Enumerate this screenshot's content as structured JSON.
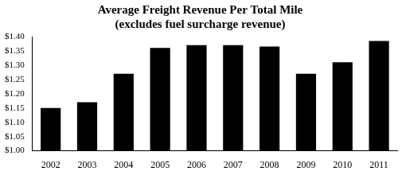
{
  "chart_data": {
    "type": "bar",
    "title": "Average Freight Revenue Per Total Mile",
    "subtitle": "(excludes fuel surcharge revenue)",
    "categories": [
      "2002",
      "2003",
      "2004",
      "2005",
      "2006",
      "2007",
      "2008",
      "2009",
      "2010",
      "2011"
    ],
    "values": [
      1.15,
      1.17,
      1.27,
      1.36,
      1.37,
      1.37,
      1.365,
      1.27,
      1.31,
      1.385
    ],
    "color": "#000000",
    "ylim": [
      1,
      1.4
    ],
    "yticks": [
      {
        "value": 1,
        "label": "$1.00"
      },
      {
        "value": 1.05,
        "label": "$1.05"
      },
      {
        "value": 1.1,
        "label": "$1.10"
      },
      {
        "value": 1.15,
        "label": "$1.15"
      },
      {
        "value": 1.2,
        "label": "$1.20"
      },
      {
        "value": 1.25,
        "label": "$1.25"
      },
      {
        "value": 1.3,
        "label": "$1.30"
      },
      {
        "value": 1.35,
        "label": "$1.35"
      },
      {
        "value": 1.4,
        "label": "$1.40"
      }
    ],
    "grid": false
  }
}
